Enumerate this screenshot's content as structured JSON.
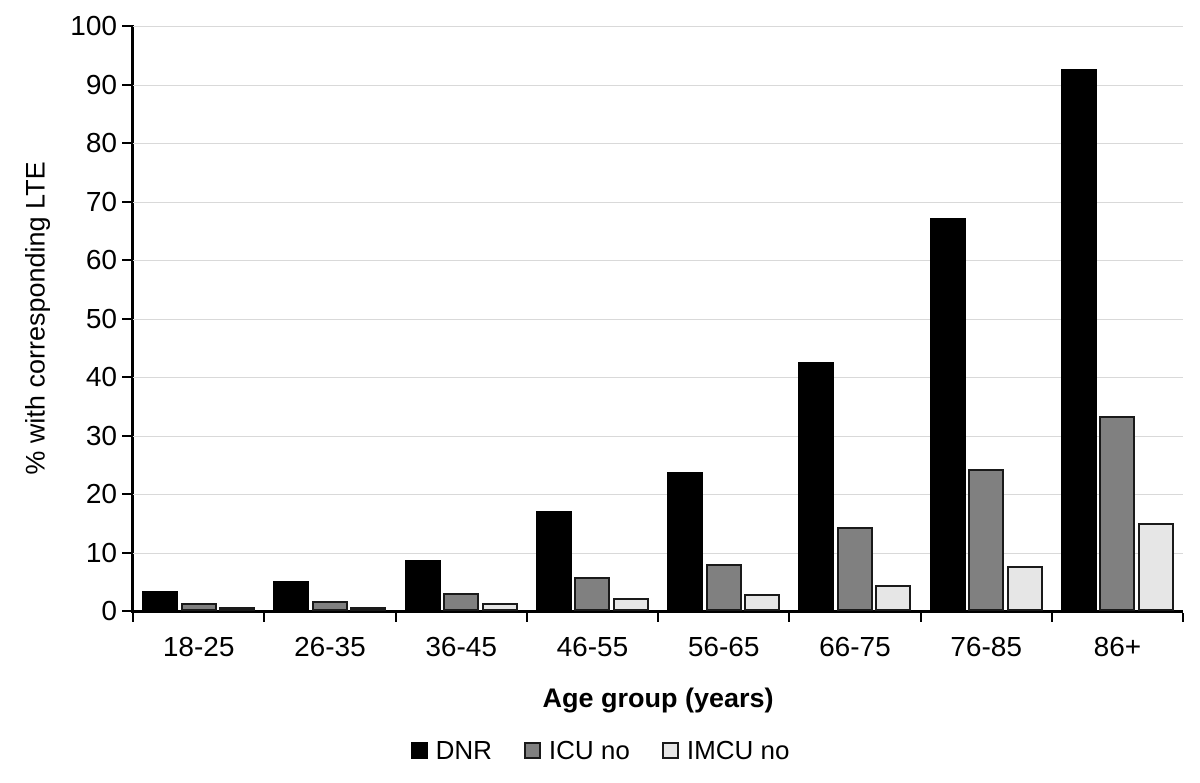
{
  "chart_data": {
    "type": "bar",
    "title": "",
    "xlabel": "Age group (years)",
    "ylabel": "% with corresponding LTE",
    "ylim": [
      0,
      100
    ],
    "y_ticks": [
      0,
      10,
      20,
      30,
      40,
      50,
      60,
      70,
      80,
      90,
      100
    ],
    "grid": true,
    "legend_position": "bottom",
    "categories": [
      "18-25",
      "26-35",
      "36-45",
      "46-55",
      "56-65",
      "66-75",
      "76-85",
      "86+"
    ],
    "series": [
      {
        "name": "DNR",
        "color": "#000000",
        "values": [
          3.5,
          5.1,
          8.8,
          17.1,
          23.8,
          42.5,
          67.1,
          92.6
        ]
      },
      {
        "name": "ICU no",
        "color": "#808080",
        "values": [
          1.3,
          1.7,
          3.1,
          5.9,
          8.0,
          14.3,
          24.2,
          33.3
        ]
      },
      {
        "name": "IMCU no",
        "color": "#e6e6e6",
        "values": [
          0.5,
          0.3,
          1.4,
          2.2,
          2.9,
          4.4,
          7.7,
          15.0
        ]
      }
    ],
    "colors": {
      "gridline": "#d9d9d9",
      "axis": "#000000",
      "bar_border": "#1a1a1a",
      "text": "#000000"
    }
  }
}
